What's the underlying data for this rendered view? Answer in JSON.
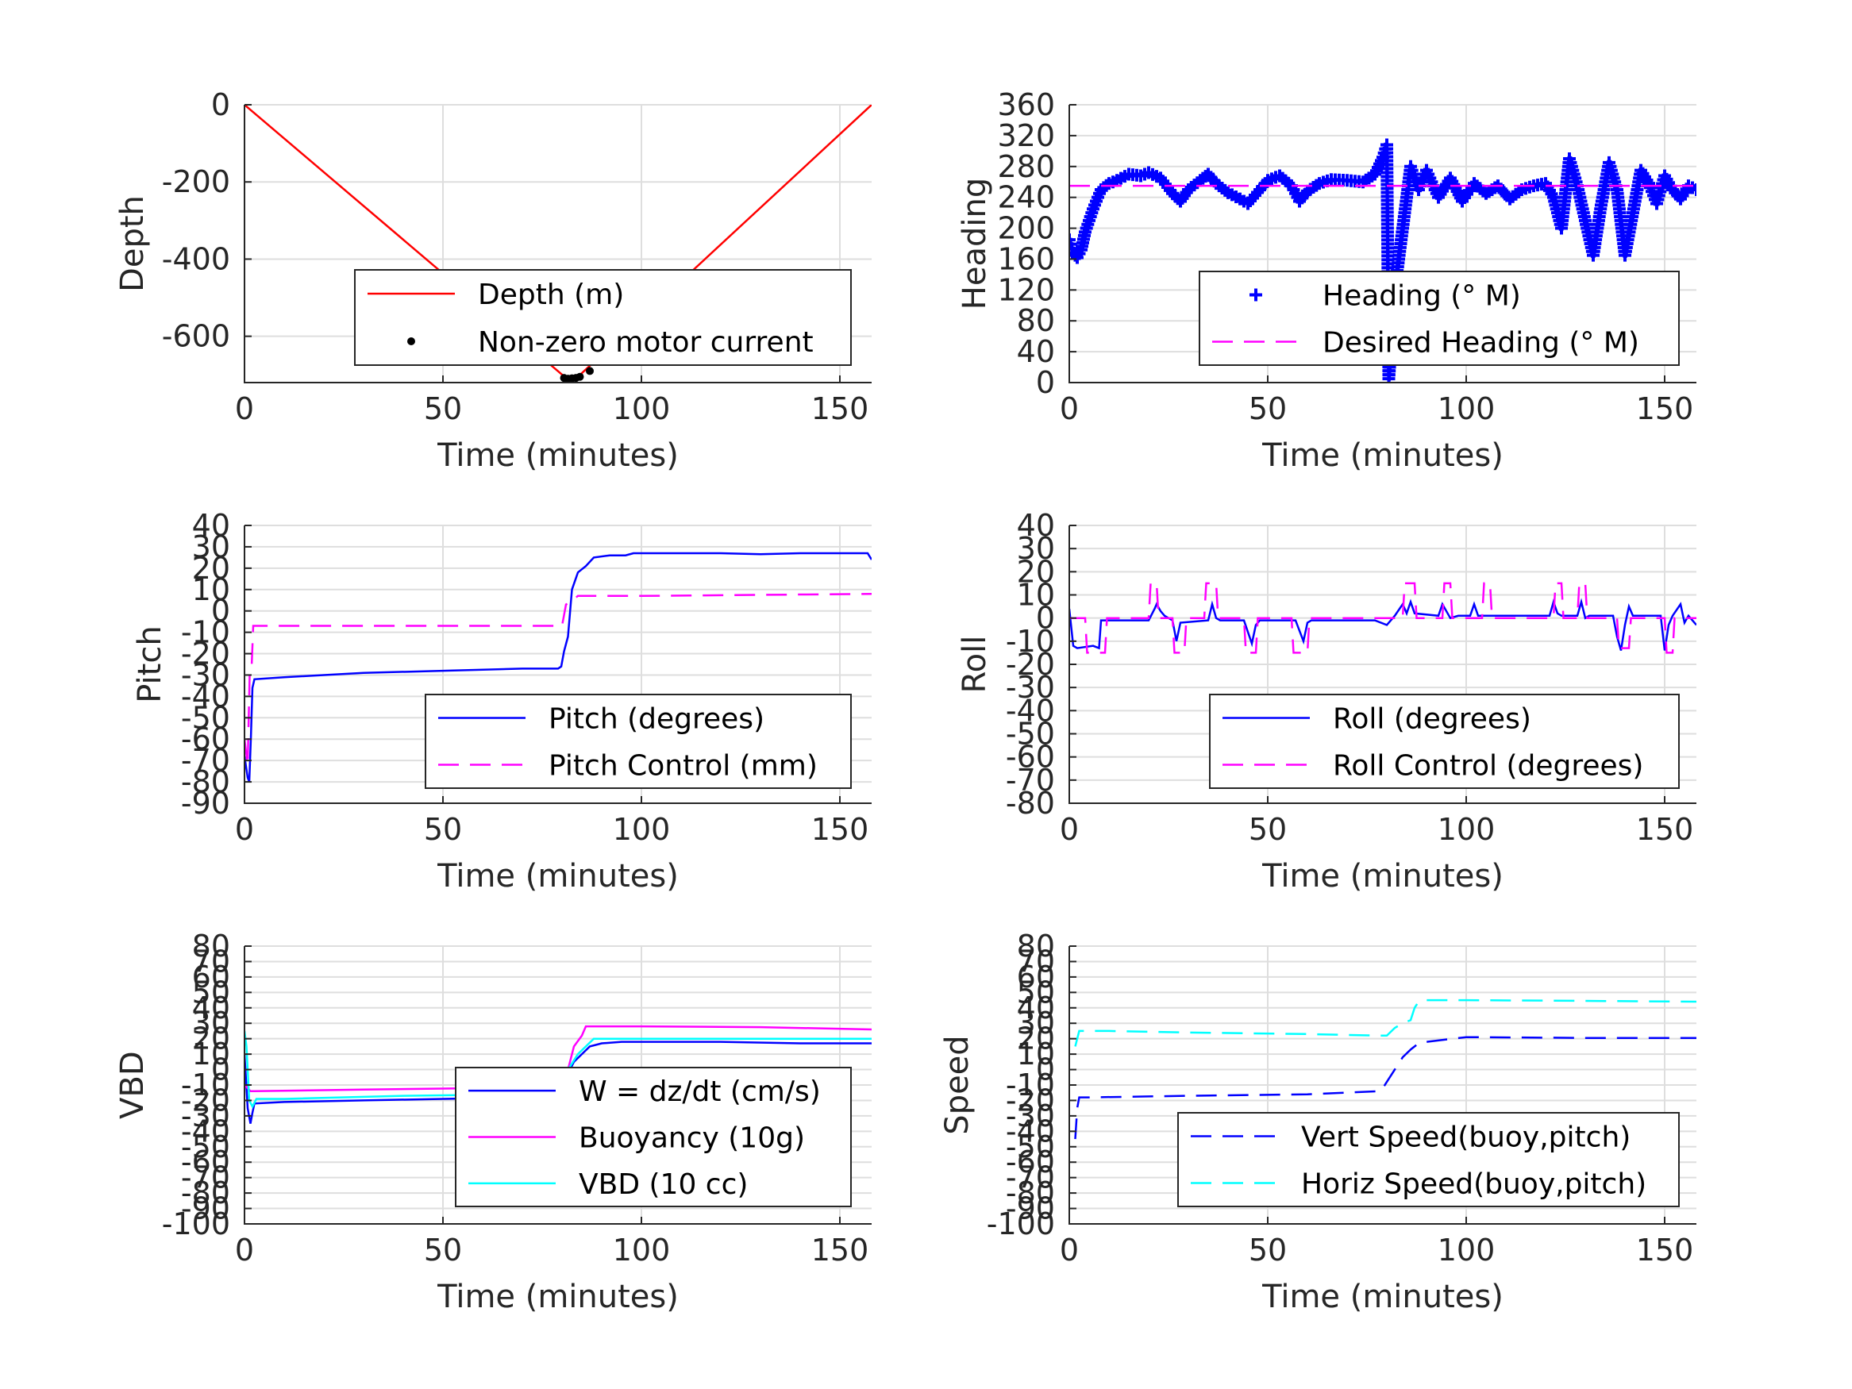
{
  "figure": {
    "background": "#ffffff"
  },
  "chart_data": [
    {
      "id": "depth",
      "type": "line",
      "xlabel": "Time (minutes)",
      "ylabel": "Depth",
      "xlim": [
        0,
        158
      ],
      "ylim": [
        -720,
        0
      ],
      "xticks": [
        0,
        50,
        100,
        150
      ],
      "yticks": [
        0,
        -200,
        -400,
        -600
      ],
      "grid": true,
      "legend": {
        "placement": "bottom-right",
        "entries": [
          "Depth (m)",
          "Non-zero motor current"
        ]
      },
      "series": [
        {
          "name": "Depth (m)",
          "color": "#ff0000",
          "style": "solid",
          "x": [
            0,
            81,
            82,
            84,
            158
          ],
          "y": [
            0,
            -708,
            -710,
            -705,
            0
          ]
        },
        {
          "name": "Non-zero motor current",
          "color": "#000000",
          "style": "points",
          "x": [
            80.5,
            81.5,
            82.5,
            83.5,
            84.5,
            87
          ],
          "y": [
            -708,
            -710,
            -709,
            -708,
            -705,
            -690
          ]
        }
      ]
    },
    {
      "id": "heading",
      "type": "scatter",
      "xlabel": "Time (minutes)",
      "ylabel": "Heading",
      "xlim": [
        0,
        158
      ],
      "ylim": [
        0,
        360
      ],
      "xticks": [
        0,
        50,
        100,
        150
      ],
      "yticks": [
        0,
        40,
        80,
        120,
        160,
        200,
        240,
        280,
        320,
        360
      ],
      "grid": true,
      "legend": {
        "placement": "bottom-right",
        "entries": [
          "Heading (° M)",
          "Desired Heading (° M)"
        ]
      },
      "series": [
        {
          "name": "Heading (° M)",
          "color": "#0000ff",
          "style": "plus",
          "x": [
            0,
            1,
            2,
            3,
            4,
            6,
            8,
            10,
            12,
            15,
            18,
            20,
            23,
            26,
            28,
            30,
            33,
            35,
            37,
            40,
            43,
            45,
            48,
            50,
            53,
            56,
            58,
            60,
            63,
            66,
            70,
            74,
            77,
            79,
            80,
            80.5,
            81,
            82,
            84,
            86,
            88,
            90,
            93,
            96,
            99,
            102,
            105,
            108,
            111,
            114,
            117,
            120,
            122,
            124,
            126,
            128,
            130,
            132,
            134,
            136,
            138,
            140,
            142,
            144,
            146,
            148,
            150,
            152,
            154,
            156,
            158
          ],
          "y": [
            185,
            168,
            162,
            172,
            195,
            225,
            250,
            258,
            262,
            270,
            268,
            272,
            265,
            245,
            235,
            250,
            262,
            270,
            258,
            246,
            238,
            232,
            250,
            262,
            268,
            255,
            235,
            248,
            258,
            263,
            262,
            260,
            270,
            292,
            308,
            5,
            40,
            120,
            200,
            280,
            250,
            275,
            240,
            265,
            235,
            258,
            245,
            255,
            238,
            250,
            255,
            258,
            240,
            200,
            290,
            255,
            210,
            165,
            230,
            285,
            250,
            165,
            220,
            275,
            258,
            232,
            268,
            250,
            238,
            255,
            250
          ]
        },
        {
          "name": "Desired Heading (° M)",
          "color": "#ff00ff",
          "style": "dashed",
          "x": [
            0,
            158
          ],
          "y": [
            255,
            255
          ]
        }
      ]
    },
    {
      "id": "pitch",
      "type": "line",
      "xlabel": "Time (minutes)",
      "ylabel": "Pitch",
      "xlim": [
        0,
        158
      ],
      "ylim": [
        -90,
        40
      ],
      "xticks": [
        0,
        50,
        100,
        150
      ],
      "yticks": [
        40,
        30,
        20,
        10,
        0,
        -10,
        -20,
        -30,
        -40,
        -50,
        -60,
        -70,
        -80,
        -90
      ],
      "grid": true,
      "legend": {
        "placement": "bottom-right",
        "entries": [
          "Pitch (degrees)",
          "Pitch Control (mm)"
        ]
      },
      "series": [
        {
          "name": "Pitch (degrees)",
          "color": "#0000ff",
          "style": "solid",
          "x": [
            0,
            0.8,
            1.2,
            1.6,
            2,
            2.5,
            10,
            30,
            50,
            70,
            79,
            79.8,
            80.5,
            81.5,
            82.5,
            84,
            86,
            88,
            92,
            96,
            98,
            100,
            110,
            120,
            130,
            140,
            150,
            157,
            158
          ],
          "y": [
            -68,
            -78,
            -80,
            -60,
            -36,
            -32,
            -31,
            -29,
            -28,
            -27,
            -27,
            -26,
            -19,
            -12,
            10,
            18,
            21,
            25,
            26,
            26,
            27,
            27,
            27,
            27,
            26.5,
            27,
            27,
            27,
            24
          ]
        },
        {
          "name": "Pitch Control (mm)",
          "color": "#ff00ff",
          "style": "dashed",
          "x": [
            0,
            0.8,
            1.3,
            1.8,
            2.2,
            30,
            60,
            80,
            80.5,
            81,
            82,
            84,
            100,
            130,
            158
          ],
          "y": [
            -60,
            -72,
            -30,
            -26,
            -7,
            -7,
            -7,
            -7,
            -2,
            3,
            4,
            7,
            7,
            7.5,
            8
          ]
        }
      ]
    },
    {
      "id": "roll",
      "type": "line",
      "xlabel": "Time (minutes)",
      "ylabel": "Roll",
      "xlim": [
        0,
        158
      ],
      "ylim": [
        -80,
        40
      ],
      "xticks": [
        0,
        50,
        100,
        150
      ],
      "yticks": [
        40,
        30,
        20,
        10,
        0,
        -10,
        -20,
        -30,
        -40,
        -50,
        -60,
        -70,
        -80
      ],
      "grid": true,
      "legend": {
        "placement": "bottom-right",
        "entries": [
          "Roll (degrees)",
          "Roll Control (degrees)"
        ]
      },
      "series": [
        {
          "name": "Roll (degrees)",
          "color": "#0000ff",
          "style": "solid",
          "x": [
            0,
            1,
            2,
            6,
            7.5,
            8,
            20,
            21.5,
            22,
            23,
            24,
            26,
            27,
            28,
            35,
            36,
            37,
            38,
            44,
            46,
            47,
            48,
            57,
            59,
            60,
            61,
            77,
            80,
            82,
            84,
            85,
            86,
            87,
            93,
            94,
            96,
            98,
            101,
            102,
            103,
            106,
            108,
            121,
            122,
            123,
            124,
            128,
            129,
            130,
            131,
            137,
            138,
            139,
            140,
            141,
            142,
            149,
            150,
            151,
            152,
            154,
            155,
            156,
            158
          ],
          "y": [
            4,
            -12,
            -13,
            -12,
            -13,
            -1,
            -1,
            4,
            6,
            3,
            1,
            -1,
            -10,
            -2,
            -1,
            6,
            0,
            -1,
            -1,
            -11,
            -3,
            -1,
            -1,
            -10,
            -2,
            -1,
            -1,
            -3,
            1,
            6,
            2,
            7,
            2,
            1,
            6,
            0,
            1,
            1,
            6,
            1,
            1,
            1,
            1,
            7,
            2,
            1,
            1,
            7,
            0,
            1,
            1,
            -8,
            -14,
            -3,
            5,
            1,
            1,
            -14,
            -3,
            1,
            6,
            -2,
            1,
            -3
          ]
        },
        {
          "name": "Roll Control (degrees)",
          "color": "#ff00ff",
          "style": "dashed",
          "x": [
            0,
            4,
            4.5,
            9,
            9.5,
            18,
            18.5,
            20,
            20.5,
            22,
            22.5,
            23,
            23.5,
            26,
            26.5,
            29,
            29.5,
            34,
            34.5,
            37,
            37.5,
            44,
            44.5,
            47,
            47.5,
            56,
            56.5,
            60,
            60.5,
            84,
            84.5,
            87,
            87.5,
            94,
            94.5,
            96,
            96.5,
            104,
            104.5,
            106,
            106.5,
            122,
            122.5,
            124,
            124.5,
            128,
            128.5,
            130,
            130.5,
            138,
            138.5,
            141,
            141.5,
            150,
            150.5,
            152,
            152.5,
            158
          ],
          "y": [
            0,
            0,
            -15,
            -15,
            0,
            0,
            0,
            0,
            15,
            15,
            0,
            0,
            0,
            0,
            -15,
            -15,
            0,
            0,
            15,
            15,
            0,
            0,
            -15,
            -15,
            0,
            0,
            -15,
            -15,
            0,
            0,
            15,
            15,
            0,
            0,
            15,
            15,
            0,
            0,
            15,
            15,
            0,
            0,
            15,
            15,
            0,
            0,
            15,
            15,
            0,
            0,
            -13,
            -13,
            0,
            0,
            -15,
            -15,
            0,
            0
          ]
        }
      ]
    },
    {
      "id": "vbd",
      "type": "line",
      "xlabel": "Time (minutes)",
      "ylabel": "VBD",
      "xlim": [
        0,
        158
      ],
      "ylim": [
        -100,
        80
      ],
      "xticks": [
        0,
        50,
        100,
        150
      ],
      "yticks": [
        80,
        70,
        60,
        50,
        40,
        30,
        20,
        10,
        0,
        -10,
        -20,
        -30,
        -40,
        -50,
        -60,
        -70,
        -80,
        -90,
        -100
      ],
      "grid": true,
      "legend": {
        "placement": "bottom-right",
        "entries": [
          "W = dz/dt (cm/s)",
          "Buoyancy (10g)",
          "VBD (10 cc)"
        ]
      },
      "series": [
        {
          "name": "W = dz/dt (cm/s)",
          "color": "#0000ff",
          "style": "solid",
          "x": [
            0,
            0.8,
            1.5,
            2,
            2.5,
            10,
            30,
            50,
            70,
            79,
            80,
            81,
            83,
            85,
            87,
            90,
            95,
            100,
            120,
            140,
            158
          ],
          "y": [
            10,
            -25,
            -35,
            -28,
            -22,
            -21,
            -20,
            -19,
            -18,
            -17,
            -14,
            -5,
            5,
            10,
            15,
            17,
            18,
            18,
            18,
            17,
            17
          ]
        },
        {
          "name": "Buoyancy (10g)",
          "color": "#ff00ff",
          "style": "solid",
          "x": [
            0,
            1.5,
            2.5,
            30,
            60,
            80,
            81,
            83,
            85,
            86,
            87,
            100,
            130,
            158
          ],
          "y": [
            -10,
            -14,
            -14,
            -13,
            -12,
            -11,
            -5,
            15,
            22,
            28,
            28,
            28,
            27.5,
            26
          ]
        },
        {
          "name": "VBD (10 cc)",
          "color": "#00ffff",
          "style": "solid",
          "x": [
            0,
            0.5,
            1.2,
            2,
            3,
            10,
            40,
            70,
            79.5,
            80.5,
            82,
            84,
            86,
            88,
            100,
            130,
            158
          ],
          "y": [
            25,
            15,
            -20,
            -24,
            -19,
            -19,
            -17,
            -16,
            -16,
            -9,
            2,
            10,
            15,
            20,
            20,
            20,
            20
          ]
        }
      ]
    },
    {
      "id": "speed",
      "type": "line",
      "xlabel": "Time (minutes)",
      "ylabel": "Speed",
      "xlim": [
        0,
        158
      ],
      "ylim": [
        -100,
        80
      ],
      "xticks": [
        0,
        50,
        100,
        150
      ],
      "yticks": [
        80,
        70,
        60,
        50,
        40,
        30,
        20,
        10,
        0,
        -10,
        -20,
        -30,
        -40,
        -50,
        -60,
        -70,
        -80,
        -90,
        -100
      ],
      "grid": true,
      "legend": {
        "placement": "bottom-right",
        "entries": [
          "Vert Speed(buoy,pitch)",
          "Horiz Speed(buoy,pitch)"
        ]
      },
      "series": [
        {
          "name": "Vert Speed(buoy,pitch)",
          "color": "#0000ff",
          "style": "dashed",
          "x": [
            1.5,
            2,
            2.5,
            5,
            30,
            60,
            78,
            79,
            80,
            82,
            84,
            86,
            88,
            90,
            100,
            130,
            158
          ],
          "y": [
            -45,
            -25,
            -18,
            -18,
            -17,
            -16,
            -14,
            -12,
            -8,
            0,
            8,
            13,
            17,
            18,
            21,
            20.5,
            20.5
          ]
        },
        {
          "name": "Horiz Speed(buoy,pitch)",
          "color": "#00ffff",
          "style": "dashed",
          "x": [
            1.5,
            2,
            2.5,
            10,
            30,
            60,
            78,
            80,
            82,
            84,
            86,
            87,
            88,
            90,
            100,
            130,
            158
          ],
          "y": [
            15,
            20,
            25,
            25,
            24,
            23,
            22,
            22,
            27,
            30,
            32,
            40,
            44,
            45,
            45,
            44.5,
            44
          ]
        }
      ]
    }
  ]
}
